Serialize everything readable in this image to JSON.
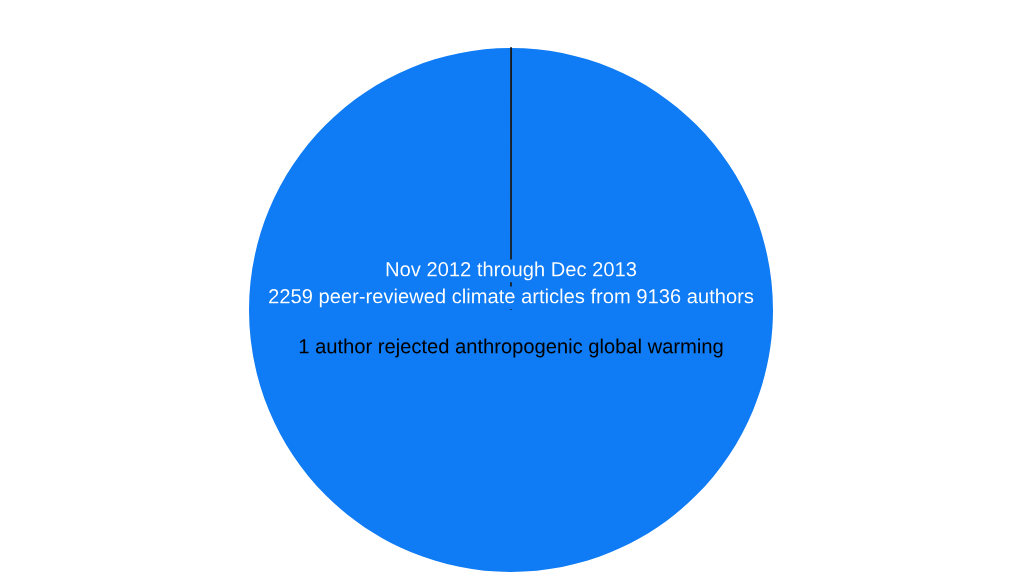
{
  "chart_data": {
    "type": "pie",
    "categories": [
      null,
      null
    ],
    "values": [
      0.011,
      99.989
    ],
    "colors": [
      "#1a1a1a",
      "#0f7bf4"
    ],
    "annotations": [
      "Nov 2012 through Dec 2013",
      "2259 peer-reviewed climate articles from 9136 authors",
      "1 author rejected anthropogenic global warming"
    ]
  }
}
